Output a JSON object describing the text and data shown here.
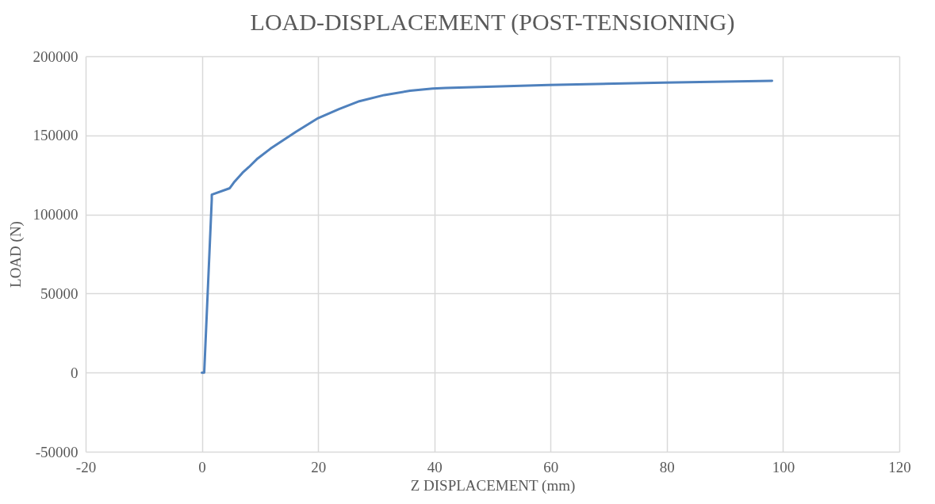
{
  "chart_data": {
    "type": "line",
    "title": "LOAD-DISPLACEMENT (POST-TENSIONING)",
    "xlabel": "Z DISPLACEMENT (mm)",
    "ylabel": "LOAD (N)",
    "series": [
      {
        "color": "#4f81bd",
        "x": [
          0,
          0.4,
          1.7,
          1.7,
          4.8,
          5.5,
          7.0,
          8.1,
          9.6,
          11.8,
          16.2,
          20,
          23.6,
          27.1,
          31.4,
          35.8,
          39.7,
          41.9,
          59.6,
          79.5,
          98.1
        ],
        "values": [
          0,
          0,
          109500,
          112500,
          116600,
          120200,
          126400,
          130000,
          135400,
          141600,
          152300,
          160900,
          166600,
          171600,
          175500,
          178200,
          179600,
          180000,
          181800,
          183400,
          184500
        ]
      }
    ],
    "xlim": [
      -20,
      120
    ],
    "xticks": [
      -20,
      0,
      20,
      40,
      60,
      80,
      100,
      120
    ],
    "ylim": [
      -50000,
      200000
    ],
    "yticks": [
      -50000,
      0,
      50000,
      100000,
      150000,
      200000
    ],
    "grid": true,
    "marker": "none",
    "line_style": "solid"
  }
}
